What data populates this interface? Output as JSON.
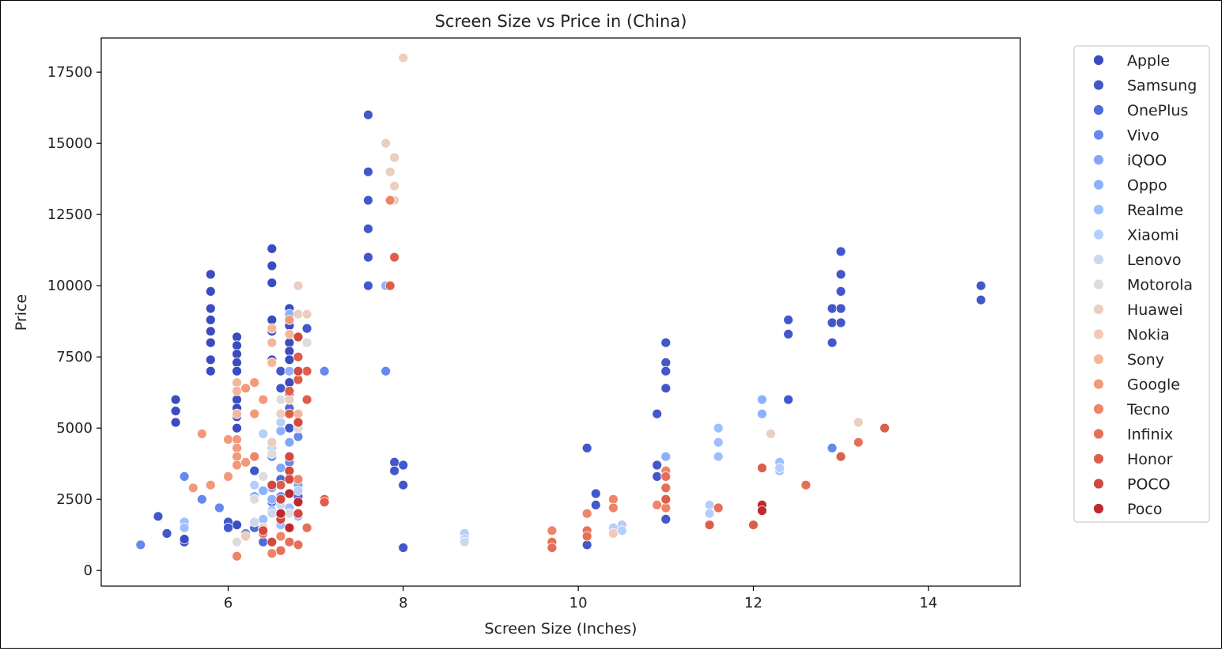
{
  "chart_data": {
    "type": "scatter",
    "title": "Screen Size vs Price in (China)",
    "xlabel": "Screen Size (Inches)",
    "ylabel": "Price",
    "xlim": [
      4.55,
      15.05
    ],
    "ylim": [
      -550,
      18700
    ],
    "xticks": [
      6,
      8,
      10,
      12,
      14
    ],
    "yticks": [
      0,
      2500,
      5000,
      7500,
      10000,
      12500,
      15000,
      17500
    ],
    "grid": false,
    "legend_position": "outside-right",
    "series": [
      {
        "name": "Apple",
        "color": "#3b4cc0",
        "points": [
          [
            5.4,
            6000
          ],
          [
            5.4,
            5600
          ],
          [
            5.4,
            5200
          ],
          [
            5.8,
            10400
          ],
          [
            5.8,
            9800
          ],
          [
            5.8,
            9200
          ],
          [
            5.8,
            8800
          ],
          [
            5.8,
            8400
          ],
          [
            5.8,
            8000
          ],
          [
            5.8,
            7400
          ],
          [
            5.8,
            7000
          ],
          [
            6.1,
            8200
          ],
          [
            6.1,
            7900
          ],
          [
            6.1,
            7600
          ],
          [
            6.1,
            7300
          ],
          [
            6.1,
            7000
          ],
          [
            6.1,
            6600
          ],
          [
            6.1,
            6300
          ],
          [
            6.1,
            6000
          ],
          [
            6.1,
            5700
          ],
          [
            6.1,
            5400
          ],
          [
            6.1,
            5000
          ],
          [
            6.5,
            11300
          ],
          [
            6.5,
            10700
          ],
          [
            6.5,
            10100
          ],
          [
            6.5,
            8800
          ],
          [
            6.5,
            8400
          ],
          [
            6.5,
            8000
          ],
          [
            6.5,
            7400
          ],
          [
            6.7,
            9200
          ],
          [
            6.7,
            8900
          ],
          [
            6.7,
            8600
          ],
          [
            6.7,
            8300
          ],
          [
            6.7,
            8000
          ],
          [
            6.7,
            7700
          ],
          [
            6.7,
            7400
          ],
          [
            6.7,
            7000
          ],
          [
            6.7,
            6600
          ],
          [
            6.7,
            6200
          ],
          [
            5.5,
            1000
          ],
          [
            5.5,
            1100
          ],
          [
            6.1,
            1600
          ]
        ]
      },
      {
        "name": "Samsung",
        "color": "#4257c9",
        "points": [
          [
            5.2,
            1900
          ],
          [
            5.3,
            1300
          ],
          [
            6.0,
            1700
          ],
          [
            6.0,
            1500
          ],
          [
            6.3,
            3500
          ],
          [
            6.4,
            1500
          ],
          [
            6.5,
            2000
          ],
          [
            6.5,
            2500
          ],
          [
            6.6,
            3000
          ],
          [
            6.6,
            6400
          ],
          [
            6.6,
            7000
          ],
          [
            6.6,
            6000
          ],
          [
            6.6,
            5500
          ],
          [
            6.7,
            5000
          ],
          [
            6.7,
            4500
          ],
          [
            6.9,
            8500
          ],
          [
            7.6,
            16000
          ],
          [
            7.6,
            14000
          ],
          [
            7.6,
            13000
          ],
          [
            7.6,
            12000
          ],
          [
            7.6,
            11000
          ],
          [
            7.6,
            10000
          ],
          [
            7.9,
            3800
          ],
          [
            7.9,
            3500
          ],
          [
            8.0,
            3700
          ],
          [
            8.0,
            3000
          ],
          [
            8.0,
            800
          ],
          [
            10.1,
            4300
          ],
          [
            10.1,
            900
          ],
          [
            10.2,
            2700
          ],
          [
            10.2,
            2300
          ],
          [
            10.9,
            5500
          ],
          [
            10.9,
            3700
          ],
          [
            10.9,
            3300
          ],
          [
            11.0,
            8000
          ],
          [
            11.0,
            7300
          ],
          [
            11.0,
            7000
          ],
          [
            11.0,
            6400
          ],
          [
            11.0,
            1800
          ],
          [
            12.4,
            8800
          ],
          [
            12.4,
            8300
          ],
          [
            12.4,
            6000
          ],
          [
            12.9,
            9200
          ],
          [
            12.9,
            8700
          ],
          [
            12.9,
            8000
          ],
          [
            13.0,
            11200
          ],
          [
            13.0,
            10400
          ],
          [
            13.0,
            9800
          ],
          [
            13.0,
            9200
          ],
          [
            13.0,
            8700
          ],
          [
            14.6,
            10000
          ],
          [
            14.6,
            9500
          ]
        ]
      },
      {
        "name": "OnePlus",
        "color": "#4f69d9",
        "points": [
          [
            6.3,
            1500
          ],
          [
            6.4,
            1000
          ],
          [
            6.5,
            2400
          ],
          [
            6.6,
            3200
          ],
          [
            6.7,
            5700
          ],
          [
            6.7,
            4000
          ],
          [
            6.8,
            3000
          ],
          [
            6.8,
            2600
          ]
        ]
      },
      {
        "name": "Vivo",
        "color": "#6788ee",
        "points": [
          [
            5.0,
            900
          ],
          [
            5.5,
            3300
          ],
          [
            5.7,
            2500
          ],
          [
            5.9,
            2200
          ],
          [
            6.2,
            1300
          ],
          [
            6.4,
            2800
          ],
          [
            6.5,
            4000
          ],
          [
            6.6,
            2600
          ],
          [
            6.7,
            3800
          ],
          [
            6.8,
            4700
          ],
          [
            7.1,
            7000
          ],
          [
            7.8,
            7000
          ],
          [
            12.9,
            4300
          ]
        ]
      },
      {
        "name": "iQOO",
        "color": "#82a6fb",
        "points": [
          [
            6.3,
            2600
          ],
          [
            6.5,
            2900
          ],
          [
            6.6,
            3600
          ],
          [
            6.7,
            4500
          ],
          [
            6.8,
            3000
          ]
        ]
      },
      {
        "name": "Oppo",
        "color": "#8db0fe",
        "points": [
          [
            6.4,
            2800
          ],
          [
            6.5,
            2500
          ],
          [
            6.6,
            4900
          ],
          [
            6.7,
            7000
          ],
          [
            6.7,
            9000
          ],
          [
            7.8,
            10000
          ],
          [
            11.0,
            2200
          ],
          [
            11.0,
            4000
          ],
          [
            12.1,
            6000
          ],
          [
            12.1,
            5500
          ]
        ]
      },
      {
        "name": "Realme",
        "color": "#9ebeff",
        "points": [
          [
            5.5,
            1700
          ],
          [
            5.5,
            1500
          ],
          [
            6.4,
            1800
          ],
          [
            6.5,
            2100
          ],
          [
            6.6,
            1600
          ],
          [
            6.7,
            2200
          ],
          [
            6.8,
            1900
          ],
          [
            11.6,
            5000
          ],
          [
            11.6,
            4500
          ],
          [
            11.6,
            4000
          ],
          [
            12.3,
            3800
          ],
          [
            12.3,
            3500
          ]
        ]
      },
      {
        "name": "Xiaomi",
        "color": "#b6cefa",
        "points": [
          [
            6.3,
            3000
          ],
          [
            6.4,
            4800
          ],
          [
            6.5,
            4300
          ],
          [
            6.6,
            5200
          ],
          [
            6.7,
            3300
          ],
          [
            6.8,
            2800
          ],
          [
            8.7,
            1300
          ],
          [
            8.7,
            1100
          ],
          [
            10.4,
            1500
          ],
          [
            10.5,
            1600
          ],
          [
            10.5,
            1400
          ],
          [
            11.5,
            2300
          ],
          [
            11.5,
            2000
          ],
          [
            12.3,
            3600
          ]
        ]
      },
      {
        "name": "Lenovo",
        "color": "#cbd8ee",
        "points": [
          [
            6.3,
            1700
          ],
          [
            6.5,
            2000
          ],
          [
            6.6,
            2300
          ],
          [
            8.7,
            1000
          ],
          [
            10.4,
            1300
          ]
        ]
      },
      {
        "name": "Motorola",
        "color": "#dddcdc",
        "points": [
          [
            6.1,
            1000
          ],
          [
            6.3,
            2500
          ],
          [
            6.4,
            3300
          ],
          [
            6.5,
            4100
          ],
          [
            6.6,
            6000
          ],
          [
            6.7,
            2000
          ],
          [
            6.8,
            5000
          ],
          [
            6.9,
            8000
          ]
        ]
      },
      {
        "name": "Huawei",
        "color": "#eacebf",
        "points": [
          [
            6.5,
            4500
          ],
          [
            6.6,
            5500
          ],
          [
            6.7,
            6000
          ],
          [
            6.8,
            10000
          ],
          [
            6.8,
            9000
          ],
          [
            6.9,
            9000
          ],
          [
            7.8,
            15000
          ],
          [
            7.9,
            14500
          ],
          [
            7.85,
            14000
          ],
          [
            7.9,
            13500
          ],
          [
            7.9,
            13000
          ],
          [
            8.0,
            18000
          ],
          [
            12.2,
            4800
          ],
          [
            13.2,
            5200
          ]
        ]
      },
      {
        "name": "Nokia",
        "color": "#f2c9b4",
        "points": [
          [
            6.2,
            1200
          ],
          [
            6.4,
            1500
          ],
          [
            10.4,
            1300
          ]
        ]
      },
      {
        "name": "Sony",
        "color": "#f6b69a",
        "points": [
          [
            6.1,
            6600
          ],
          [
            6.1,
            6300
          ],
          [
            6.1,
            5500
          ],
          [
            6.5,
            8500
          ],
          [
            6.5,
            8000
          ],
          [
            6.5,
            7300
          ],
          [
            6.7,
            8300
          ],
          [
            6.8,
            5500
          ]
        ]
      },
      {
        "name": "Google",
        "color": "#f4987a",
        "points": [
          [
            5.6,
            2900
          ],
          [
            5.7,
            4800
          ],
          [
            5.8,
            3000
          ],
          [
            6.0,
            4600
          ],
          [
            6.0,
            3300
          ],
          [
            6.1,
            4600
          ],
          [
            6.1,
            4300
          ],
          [
            6.1,
            4000
          ],
          [
            6.1,
            3700
          ],
          [
            6.2,
            3800
          ],
          [
            6.2,
            6400
          ],
          [
            6.3,
            6600
          ],
          [
            6.3,
            5500
          ],
          [
            6.4,
            6000
          ],
          [
            6.7,
            8800
          ]
        ]
      },
      {
        "name": "Tecno",
        "color": "#ee8468",
        "points": [
          [
            6.1,
            500
          ],
          [
            6.3,
            4000
          ],
          [
            6.5,
            600
          ],
          [
            6.6,
            1200
          ],
          [
            6.8,
            3200
          ],
          [
            7.85,
            13000
          ],
          [
            9.7,
            1400
          ],
          [
            10.1,
            2000
          ],
          [
            10.4,
            2500
          ],
          [
            10.4,
            2200
          ],
          [
            11.0,
            3500
          ],
          [
            11.0,
            2200
          ],
          [
            10.9,
            2300
          ]
        ]
      },
      {
        "name": "Infinix",
        "color": "#e57058",
        "points": [
          [
            6.4,
            1300
          ],
          [
            6.6,
            700
          ],
          [
            6.7,
            1000
          ],
          [
            6.8,
            900
          ],
          [
            6.9,
            1500
          ],
          [
            9.7,
            1000
          ],
          [
            9.7,
            800
          ],
          [
            10.1,
            1400
          ],
          [
            10.1,
            1200
          ],
          [
            11.0,
            3300
          ],
          [
            11.0,
            2900
          ],
          [
            11.6,
            2200
          ],
          [
            12.6,
            3000
          ],
          [
            13.2,
            4500
          ]
        ]
      },
      {
        "name": "Honor",
        "color": "#dd5e4b",
        "points": [
          [
            6.6,
            3000
          ],
          [
            6.7,
            5500
          ],
          [
            6.7,
            6300
          ],
          [
            6.8,
            7500
          ],
          [
            6.8,
            6700
          ],
          [
            6.9,
            7000
          ],
          [
            6.9,
            6000
          ],
          [
            7.1,
            2500
          ],
          [
            7.1,
            2400
          ],
          [
            7.9,
            11000
          ],
          [
            7.85,
            10000
          ],
          [
            11.0,
            2500
          ],
          [
            11.5,
            1600
          ],
          [
            12.0,
            1600
          ],
          [
            12.1,
            3600
          ],
          [
            13.0,
            4000
          ],
          [
            13.5,
            5000
          ]
        ]
      },
      {
        "name": "POCO",
        "color": "#d1493f",
        "points": [
          [
            6.4,
            1400
          ],
          [
            6.5,
            1000
          ],
          [
            6.5,
            3000
          ],
          [
            6.6,
            2500
          ],
          [
            6.6,
            1800
          ],
          [
            6.7,
            3500
          ],
          [
            6.7,
            4000
          ],
          [
            6.7,
            3200
          ],
          [
            6.8,
            2000
          ],
          [
            6.8,
            8200
          ],
          [
            6.8,
            7000
          ],
          [
            6.8,
            5200
          ]
        ]
      },
      {
        "name": "Poco",
        "color": "#c0282f",
        "points": [
          [
            6.6,
            2000
          ],
          [
            6.7,
            2700
          ],
          [
            6.7,
            1500
          ],
          [
            6.8,
            2400
          ],
          [
            12.1,
            2300
          ],
          [
            12.1,
            2100
          ]
        ]
      }
    ]
  }
}
